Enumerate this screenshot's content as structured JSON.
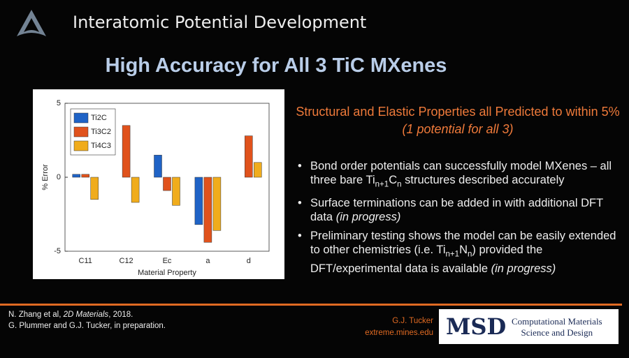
{
  "header": {
    "title": "Interatomic Potential Development"
  },
  "slide_title": "High Accuracy for All 3 TiC MXenes",
  "chart_data": {
    "type": "bar",
    "ylabel": "% Error",
    "xlabel": "Material Property",
    "categories": [
      "C11",
      "C12",
      "Ec",
      "a",
      "d"
    ],
    "series": [
      {
        "name": "Ti2C",
        "color": "#1f63c6",
        "values": [
          0.2,
          0,
          1.5,
          -3.2,
          0
        ]
      },
      {
        "name": "Ti3C2",
        "color": "#e0521c",
        "values": [
          0.2,
          3.5,
          -0.9,
          -4.4,
          2.8
        ]
      },
      {
        "name": "Ti4C3",
        "color": "#f0ac1c",
        "values": [
          -1.5,
          -1.7,
          -1.9,
          -3.6,
          1.0
        ]
      }
    ],
    "ylim": [
      -5,
      5
    ],
    "yticks": [
      -5,
      0,
      5
    ],
    "legend": "top-left"
  },
  "heading": [
    {
      "text": "Structural and Elastic Properties all Predicted to within 5% "
    },
    {
      "text": "(1 potential for all 3)",
      "style": "italic"
    }
  ],
  "bullets": [
    [
      {
        "text": "Bond order potentials can successfully model MXenes – all three bare Ti"
      },
      {
        "text": "n+1",
        "style": "sub"
      },
      {
        "text": "C"
      },
      {
        "text": "n",
        "style": "sub"
      },
      {
        "text": " structures described accurately"
      }
    ],
    [
      {
        "text": "Surface terminations can be added in with additional DFT data "
      },
      {
        "text": "(in progress)",
        "style": "italic"
      }
    ],
    [
      {
        "text": "Preliminary testing shows the model can be easily extended to other chemistries (i.e. Ti"
      },
      {
        "text": "n+1",
        "style": "sub"
      },
      {
        "text": "N"
      },
      {
        "text": "n",
        "style": "sub"
      },
      {
        "text": ") provided the DFT/experimental data is available "
      },
      {
        "text": "(in progress)",
        "style": "italic"
      }
    ]
  ],
  "references": [
    [
      {
        "text": "N. Zhang et al, "
      },
      {
        "text": "2D Materials",
        "style": "italic"
      },
      {
        "text": ", 2018."
      }
    ],
    [
      {
        "text": "G. Plummer and G.J. Tucker, in preparation."
      }
    ]
  ],
  "author": {
    "name": "G.J. Tucker",
    "site": "extreme.mines.edu"
  },
  "logo": {
    "mark": "MSD",
    "line1": "Computational Materials",
    "line2": "Science and Design"
  }
}
